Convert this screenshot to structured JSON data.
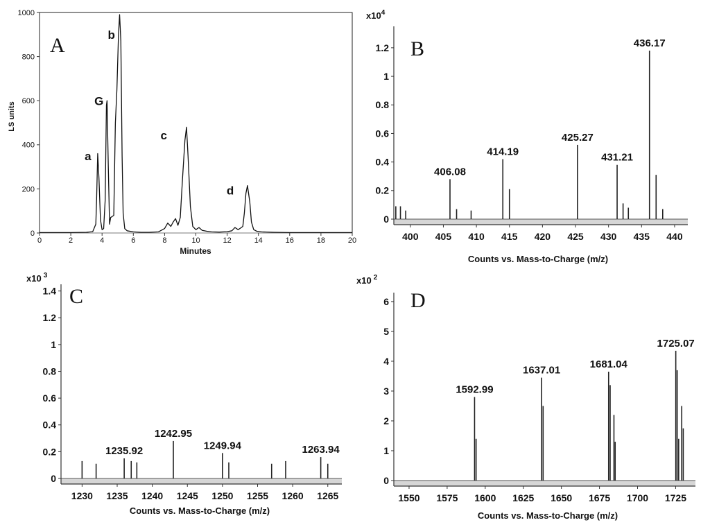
{
  "chart_data": [
    {
      "panel_letter": "A",
      "type": "line",
      "xlabel": "Minutes",
      "ylabel": "LS units",
      "xlim": [
        0,
        20
      ],
      "ylim": [
        0,
        1000
      ],
      "xticks": [
        0,
        2,
        4,
        6,
        8,
        10,
        12,
        14,
        16,
        18,
        20
      ],
      "yticks": [
        0,
        200,
        400,
        600,
        800,
        1000
      ],
      "grid": false,
      "series": [
        {
          "x": [
            0,
            1,
            2,
            3,
            3.4,
            3.6,
            3.65,
            3.72,
            3.8,
            3.9,
            4.0,
            4.1,
            4.2,
            4.28,
            4.32,
            4.4,
            4.48,
            4.55,
            4.65,
            4.75,
            4.85,
            4.95,
            5.05,
            5.12,
            5.2,
            5.28,
            5.35,
            5.45,
            5.6,
            6.0,
            6.5,
            7,
            7.6,
            8.0,
            8.2,
            8.4,
            8.55,
            8.7,
            8.85,
            9.0,
            9.15,
            9.3,
            9.4,
            9.5,
            9.65,
            9.8,
            10.0,
            10.2,
            10.4,
            10.7,
            11,
            11.5,
            12,
            12.3,
            12.5,
            12.7,
            12.85,
            13.0,
            13.1,
            13.2,
            13.3,
            13.45,
            13.55,
            13.7,
            13.9,
            14.2,
            15,
            16,
            17,
            18,
            19,
            20
          ],
          "y": [
            2,
            2,
            2,
            3,
            6,
            40,
            150,
            360,
            250,
            60,
            15,
            20,
            150,
            580,
            600,
            300,
            40,
            70,
            75,
            80,
            500,
            650,
            900,
            990,
            870,
            350,
            90,
            20,
            10,
            5,
            3,
            3,
            5,
            20,
            45,
            30,
            50,
            65,
            35,
            70,
            250,
            420,
            480,
            350,
            120,
            30,
            15,
            25,
            12,
            8,
            5,
            4,
            6,
            10,
            25,
            15,
            22,
            30,
            90,
            180,
            215,
            140,
            50,
            15,
            8,
            5,
            3,
            2,
            2,
            2,
            2,
            2
          ]
        }
      ],
      "annotations": [
        {
          "text": "a",
          "x": 3.1,
          "y": 330
        },
        {
          "text": "G",
          "x": 3.8,
          "y": 580
        },
        {
          "text": "b",
          "x": 4.6,
          "y": 880
        },
        {
          "text": "c",
          "x": 7.95,
          "y": 425
        },
        {
          "text": "d",
          "x": 12.2,
          "y": 175
        }
      ]
    },
    {
      "panel_letter": "B",
      "type": "bar",
      "xlabel": "Counts vs. Mass-to-Charge (m/z)",
      "scale_label": "x10",
      "scale_exponent": "4",
      "xlim": [
        397.5,
        442
      ],
      "ylim": [
        0,
        1.35
      ],
      "xticks": [
        400,
        405,
        410,
        415,
        420,
        425,
        430,
        435,
        440
      ],
      "yticks": [
        0,
        0.2,
        0.4,
        0.6,
        0.8,
        1,
        1.2
      ],
      "grid": false,
      "peaks": [
        {
          "x": 397.8,
          "y": 0.09
        },
        {
          "x": 398.5,
          "y": 0.09
        },
        {
          "x": 399.3,
          "y": 0.06
        },
        {
          "x": 406.0,
          "y": 0.28,
          "label": "406.08"
        },
        {
          "x": 407.0,
          "y": 0.07
        },
        {
          "x": 409.2,
          "y": 0.06
        },
        {
          "x": 414.0,
          "y": 0.42,
          "label": "414.19"
        },
        {
          "x": 415.0,
          "y": 0.21
        },
        {
          "x": 425.3,
          "y": 0.52,
          "label": "425.27"
        },
        {
          "x": 431.3,
          "y": 0.38,
          "label": "431.21"
        },
        {
          "x": 432.2,
          "y": 0.11
        },
        {
          "x": 433.0,
          "y": 0.08
        },
        {
          "x": 436.2,
          "y": 1.18,
          "label": "436.17"
        },
        {
          "x": 437.2,
          "y": 0.31
        },
        {
          "x": 438.2,
          "y": 0.07
        }
      ]
    },
    {
      "panel_letter": "C",
      "type": "bar",
      "xlabel": "Counts vs. Mass-to-Charge (m/z)",
      "scale_label": "x10",
      "scale_exponent": "3",
      "xlim": [
        1227,
        1267
      ],
      "ylim": [
        0,
        1.45
      ],
      "xticks": [
        1230,
        1235,
        1240,
        1245,
        1250,
        1255,
        1260,
        1265
      ],
      "yticks": [
        0,
        0.2,
        0.4,
        0.6,
        0.8,
        1,
        1.2,
        1.4
      ],
      "grid": false,
      "peaks": [
        {
          "x": 1230.0,
          "y": 0.13
        },
        {
          "x": 1232.0,
          "y": 0.11
        },
        {
          "x": 1236.0,
          "y": 0.15,
          "label": "1235.92"
        },
        {
          "x": 1237.0,
          "y": 0.13
        },
        {
          "x": 1237.8,
          "y": 0.12
        },
        {
          "x": 1243.0,
          "y": 0.28,
          "label": "1242.95"
        },
        {
          "x": 1250.0,
          "y": 0.19,
          "label": "1249.94"
        },
        {
          "x": 1250.9,
          "y": 0.12
        },
        {
          "x": 1257.0,
          "y": 0.11
        },
        {
          "x": 1259.0,
          "y": 0.13
        },
        {
          "x": 1264.0,
          "y": 0.16,
          "label": "1263.94"
        },
        {
          "x": 1265.0,
          "y": 0.11
        }
      ]
    },
    {
      "panel_letter": "D",
      "type": "bar",
      "xlabel": "Counts vs. Mass-to-Charge (m/z)",
      "scale_label": "x10",
      "scale_exponent": "2",
      "xlim": [
        1540,
        1738
      ],
      "ylim": [
        0,
        6.3
      ],
      "xticks": [
        1550,
        1575,
        1600,
        1625,
        1650,
        1675,
        1700,
        1725
      ],
      "yticks": [
        0,
        1,
        2,
        3,
        4,
        5,
        6
      ],
      "grid": false,
      "peaks": [
        {
          "x": 1593.0,
          "y": 2.8,
          "label": "1592.99"
        },
        {
          "x": 1594.0,
          "y": 1.4
        },
        {
          "x": 1637.0,
          "y": 3.45,
          "label": "1637.01"
        },
        {
          "x": 1638.0,
          "y": 2.5
        },
        {
          "x": 1681.0,
          "y": 3.65,
          "label": "1681.04"
        },
        {
          "x": 1682.0,
          "y": 3.2
        },
        {
          "x": 1684.5,
          "y": 2.2
        },
        {
          "x": 1685.3,
          "y": 1.3
        },
        {
          "x": 1725.1,
          "y": 4.35,
          "label": "1725.07"
        },
        {
          "x": 1726.0,
          "y": 3.7
        },
        {
          "x": 1727.0,
          "y": 1.4
        },
        {
          "x": 1729.0,
          "y": 2.5
        },
        {
          "x": 1730.0,
          "y": 1.75
        }
      ]
    }
  ]
}
